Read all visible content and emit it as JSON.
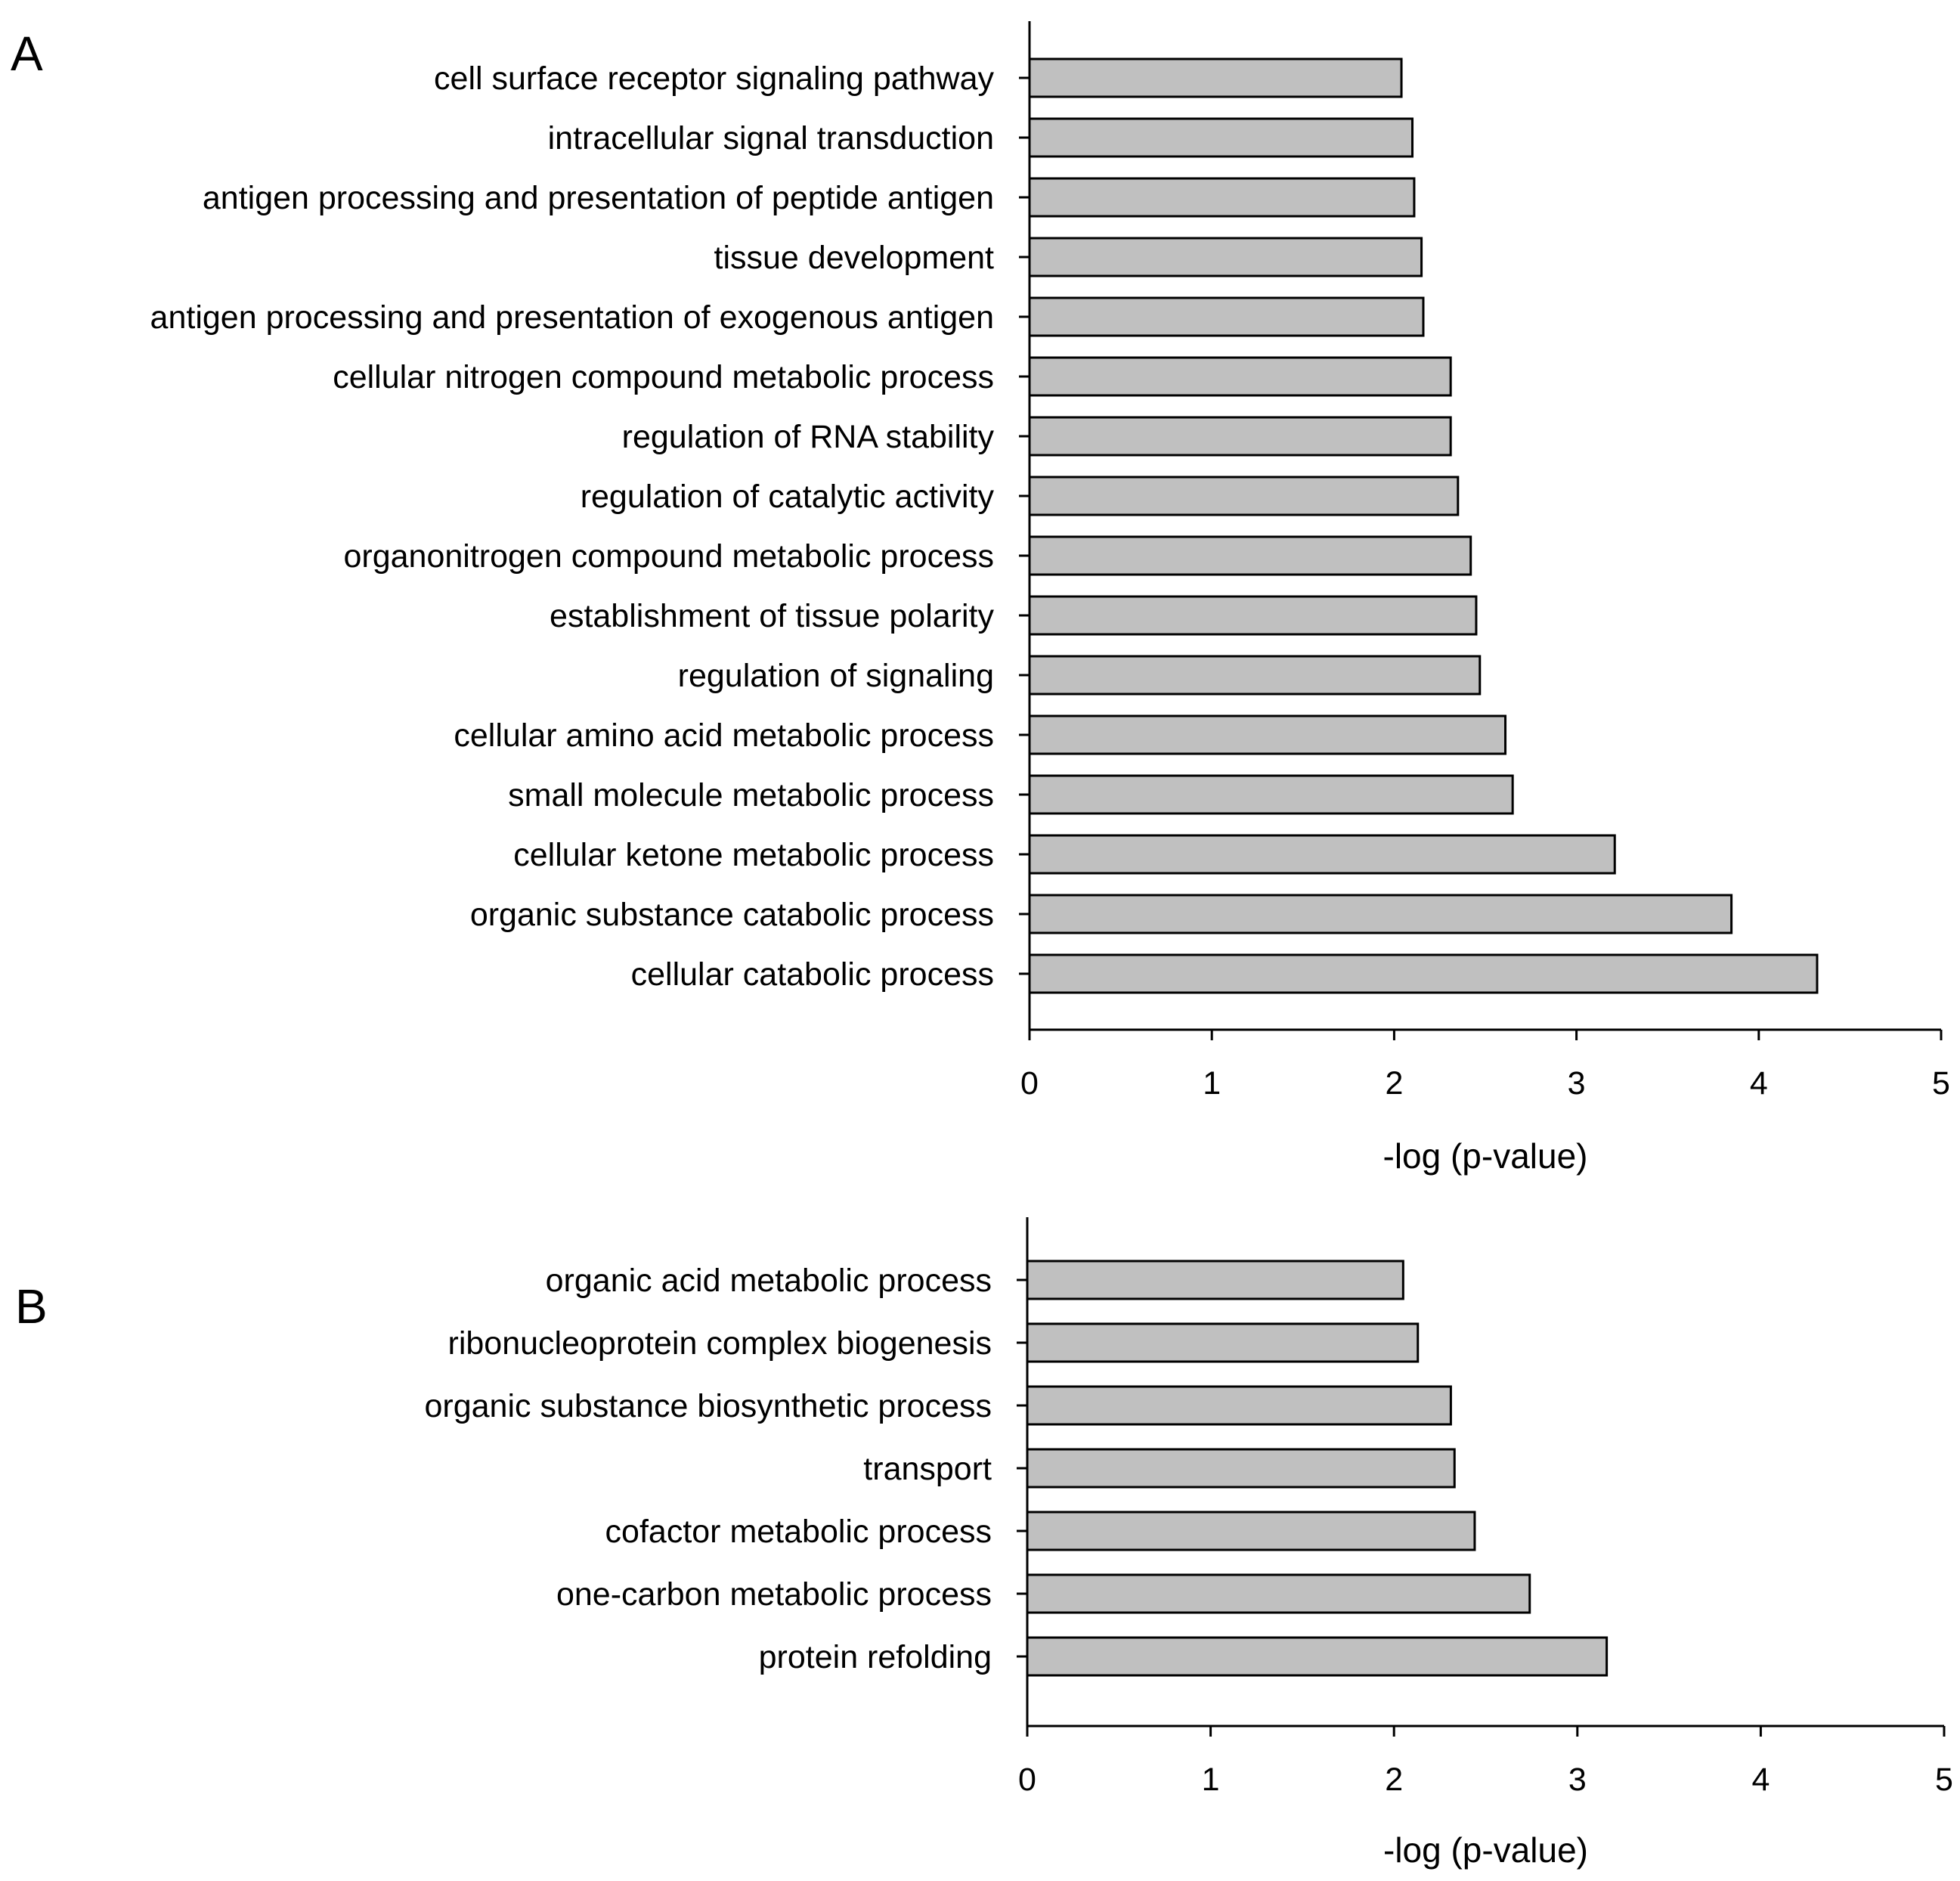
{
  "chart_data": [
    {
      "type": "bar",
      "orientation": "horizontal",
      "panel": "A",
      "title": "",
      "xlabel": "-log (p-value)",
      "ylabel": "",
      "xlim": [
        0,
        5
      ],
      "xticks": [
        0,
        1,
        2,
        3,
        4,
        5
      ],
      "bar_color": "#c0c0c0",
      "categories": [
        "cell surface receptor signaling pathway",
        "intracellular signal transduction",
        "antigen processing and presentation of peptide antigen",
        "tissue development",
        "antigen processing and presentation of exogenous antigen",
        "cellular nitrogen compound metabolic process",
        "regulation of RNA stability",
        "regulation of catalytic activity",
        "organonitrogen compound metabolic process",
        "establishment of tissue polarity",
        "regulation of signaling",
        "cellular amino acid metabolic process",
        "small molecule metabolic process",
        "cellular ketone metabolic process",
        "organic substance catabolic process",
        "cellular catabolic process"
      ],
      "values": [
        2.04,
        2.1,
        2.11,
        2.15,
        2.16,
        2.31,
        2.31,
        2.35,
        2.42,
        2.45,
        2.47,
        2.61,
        2.65,
        3.21,
        3.85,
        4.32
      ]
    },
    {
      "type": "bar",
      "orientation": "horizontal",
      "panel": "B",
      "title": "",
      "xlabel": "-log (p-value)",
      "ylabel": "",
      "xlim": [
        0,
        5
      ],
      "xticks": [
        0,
        1,
        2,
        3,
        4,
        5
      ],
      "bar_color": "#c0c0c0",
      "categories": [
        "organic acid metabolic process",
        "ribonucleoprotein complex biogenesis",
        "organic substance biosynthetic process",
        "transport",
        "cofactor metabolic process",
        "one-carbon metabolic process",
        "protein refolding"
      ],
      "values": [
        2.05,
        2.13,
        2.31,
        2.33,
        2.44,
        2.74,
        3.16
      ]
    }
  ]
}
